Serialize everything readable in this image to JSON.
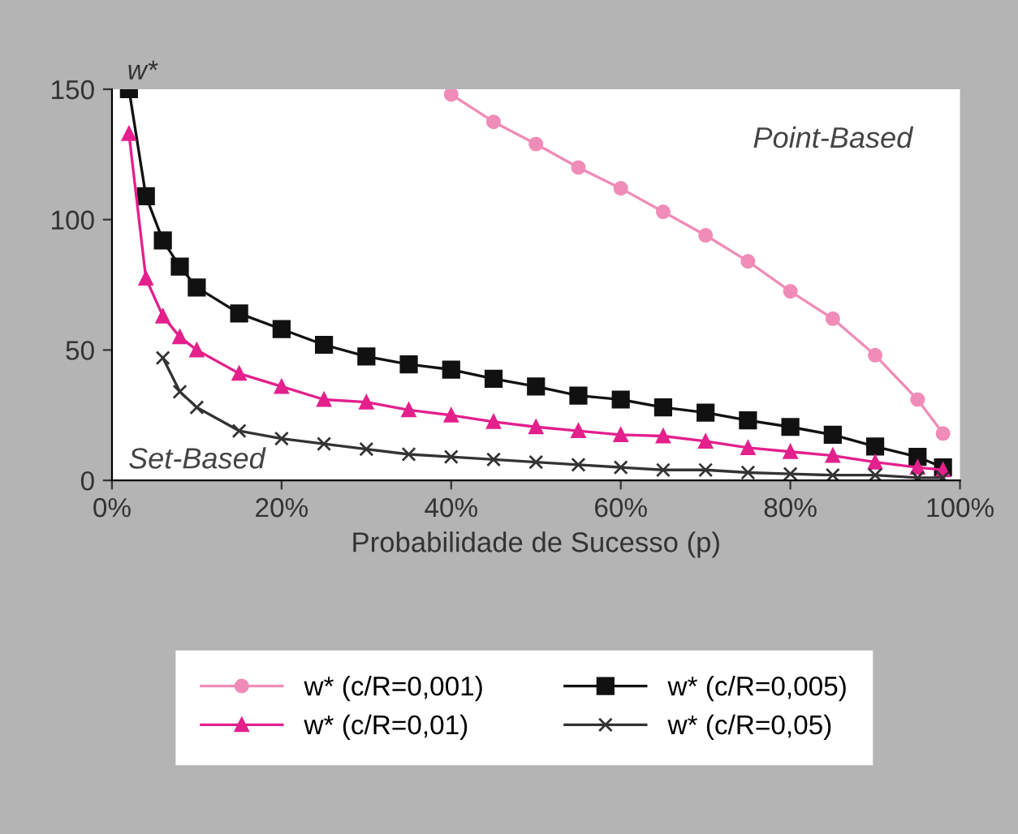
{
  "chart_data": {
    "type": "line",
    "ylabel": "w*",
    "xlabel": "Probabilidade de Sucesso (p)",
    "x": [
      2,
      4,
      6,
      8,
      10,
      15,
      20,
      25,
      30,
      35,
      40,
      45,
      50,
      55,
      60,
      65,
      70,
      75,
      80,
      85,
      90,
      95,
      98
    ],
    "xlim": [
      0,
      100
    ],
    "xticks": [
      {
        "value": 0,
        "label": "0%"
      },
      {
        "value": 20,
        "label": "20%"
      },
      {
        "value": 40,
        "label": "40%"
      },
      {
        "value": 60,
        "label": "60%"
      },
      {
        "value": 80,
        "label": "80%"
      },
      {
        "value": 100,
        "label": "100%"
      }
    ],
    "ylim": [
      0,
      150
    ],
    "yticks": [
      0,
      50,
      100,
      150
    ],
    "grid": false,
    "legend": "bottom",
    "series": [
      {
        "name": "w* (c/R=0,001)",
        "color": "#f08cb8",
        "marker": "circle",
        "values": [
          null,
          null,
          null,
          null,
          null,
          null,
          null,
          null,
          null,
          null,
          148,
          137.5,
          129,
          120,
          112,
          103,
          94,
          84,
          72.5,
          62,
          48,
          31,
          18
        ]
      },
      {
        "name": "w* (c/R=0,005)",
        "color": "#111111",
        "marker": "square",
        "values": [
          150,
          109,
          92,
          82,
          74,
          64,
          58,
          52,
          47.5,
          44.5,
          42.5,
          39,
          36,
          32.5,
          31,
          28,
          26,
          23,
          20.5,
          17.5,
          13,
          9,
          5
        ]
      },
      {
        "name": "w* (c/R=0,01)",
        "color": "#e3208c",
        "marker": "triangle",
        "values": [
          133,
          77.5,
          63,
          55,
          50,
          41,
          36,
          31,
          30,
          27,
          25,
          22.5,
          20.5,
          19,
          17.5,
          17,
          15,
          12.5,
          11,
          9.5,
          7,
          5,
          4
        ]
      },
      {
        "name": "w* (c/R=0,05)",
        "color": "#333333",
        "marker": "cross",
        "values": [
          null,
          null,
          47,
          34,
          28,
          19,
          16,
          14,
          12,
          10,
          9,
          8,
          7,
          6,
          5,
          4,
          4,
          3,
          2.5,
          2,
          2,
          1,
          1
        ]
      }
    ],
    "annotations": [
      "Point-Based",
      "Set-Based"
    ]
  }
}
